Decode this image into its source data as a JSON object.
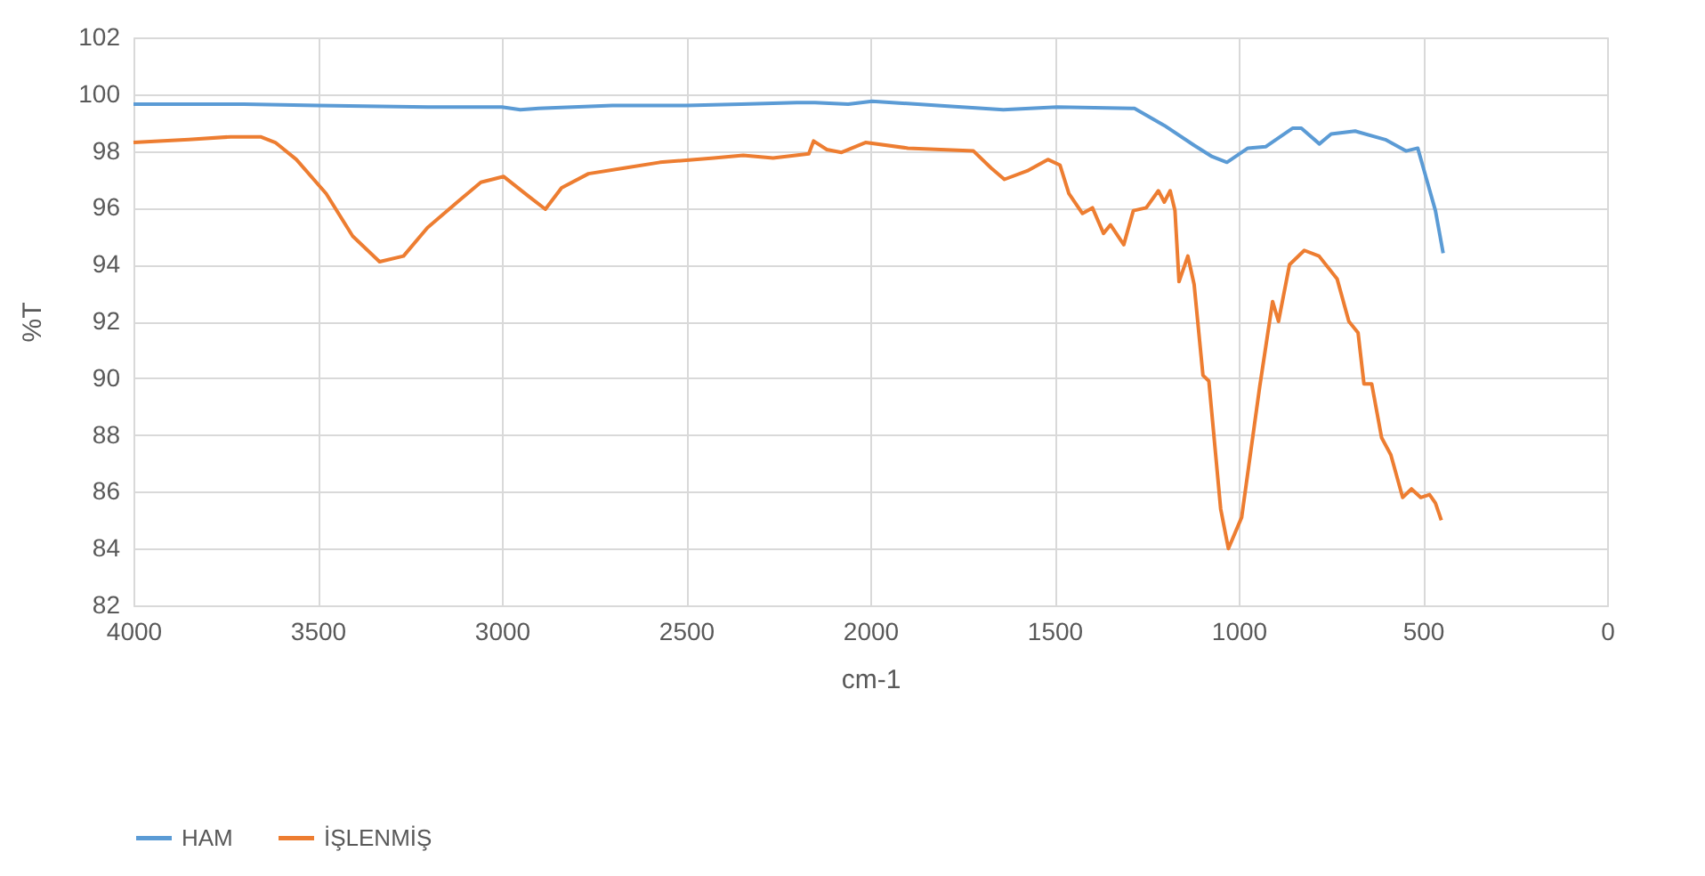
{
  "chart_data": {
    "type": "line",
    "xlabel": "cm-1",
    "ylabel": "%T",
    "xlim": [
      4000,
      0
    ],
    "xticks": [
      4000,
      3500,
      3000,
      2500,
      2000,
      1500,
      1000,
      500,
      0
    ],
    "ylim": [
      82,
      102
    ],
    "yticks": [
      82,
      84,
      86,
      88,
      90,
      92,
      94,
      96,
      98,
      100,
      102
    ],
    "grid": true,
    "legend": "bottom",
    "marker": "none",
    "line_style": "solid",
    "series": [
      {
        "name": "HAM",
        "color": "#5b9bd5",
        "x": [
          4000,
          3700,
          3500,
          3200,
          3000,
          2950,
          2900,
          2700,
          2500,
          2350,
          2200,
          2150,
          2060,
          1995,
          1817,
          1639,
          1493,
          1283,
          1202,
          1121,
          1072,
          1032,
          975,
          927,
          854,
          830,
          781,
          749,
          684,
          602,
          546,
          514,
          490,
          466,
          445
        ],
        "values": [
          99.65,
          99.65,
          99.6,
          99.55,
          99.55,
          99.45,
          99.5,
          99.6,
          99.6,
          99.65,
          99.7,
          99.7,
          99.65,
          99.75,
          99.6,
          99.45,
          99.55,
          99.5,
          98.9,
          98.2,
          97.8,
          97.6,
          98.1,
          98.15,
          98.8,
          98.8,
          98.25,
          98.6,
          98.7,
          98.4,
          98.0,
          98.1,
          97.0,
          95.9,
          94.4
        ]
      },
      {
        "name": "İŞLENMİŞ",
        "color": "#ed7d31",
        "x": [
          4000,
          3850,
          3736,
          3655,
          3615,
          3558,
          3477,
          3405,
          3332,
          3267,
          3202,
          3121,
          3057,
          2995,
          2927,
          2882,
          2838,
          2765,
          2668,
          2571,
          2425,
          2345,
          2264,
          2167,
          2154,
          2118,
          2078,
          2013,
          1898,
          1720,
          1672,
          1636,
          1574,
          1518,
          1485,
          1461,
          1424,
          1397,
          1367,
          1348,
          1312,
          1286,
          1251,
          1218,
          1202,
          1186,
          1173,
          1162,
          1138,
          1121,
          1097,
          1081,
          1049,
          1028,
          992,
          943,
          908,
          892,
          862,
          822,
          782,
          733,
          701,
          676,
          660,
          639,
          612,
          587,
          555,
          531,
          506,
          482,
          466,
          450
        ],
        "values": [
          98.3,
          98.4,
          98.5,
          98.5,
          98.3,
          97.7,
          96.5,
          95.0,
          94.1,
          94.3,
          95.3,
          96.2,
          96.9,
          97.1,
          96.4,
          95.95,
          96.7,
          97.2,
          97.4,
          97.6,
          97.75,
          97.85,
          97.75,
          97.9,
          98.35,
          98.05,
          97.95,
          98.3,
          98.1,
          98.0,
          97.4,
          97.0,
          97.3,
          97.7,
          97.5,
          96.5,
          95.8,
          96.0,
          95.1,
          95.4,
          94.7,
          95.9,
          96.0,
          96.6,
          96.2,
          96.6,
          95.9,
          93.4,
          94.3,
          93.3,
          90.1,
          89.9,
          85.4,
          84.0,
          85.1,
          89.7,
          92.7,
          92.0,
          94.0,
          94.5,
          94.3,
          93.5,
          92.0,
          91.6,
          89.8,
          89.8,
          87.9,
          87.3,
          85.8,
          86.1,
          85.8,
          85.9,
          85.6,
          85.0
        ]
      }
    ]
  }
}
